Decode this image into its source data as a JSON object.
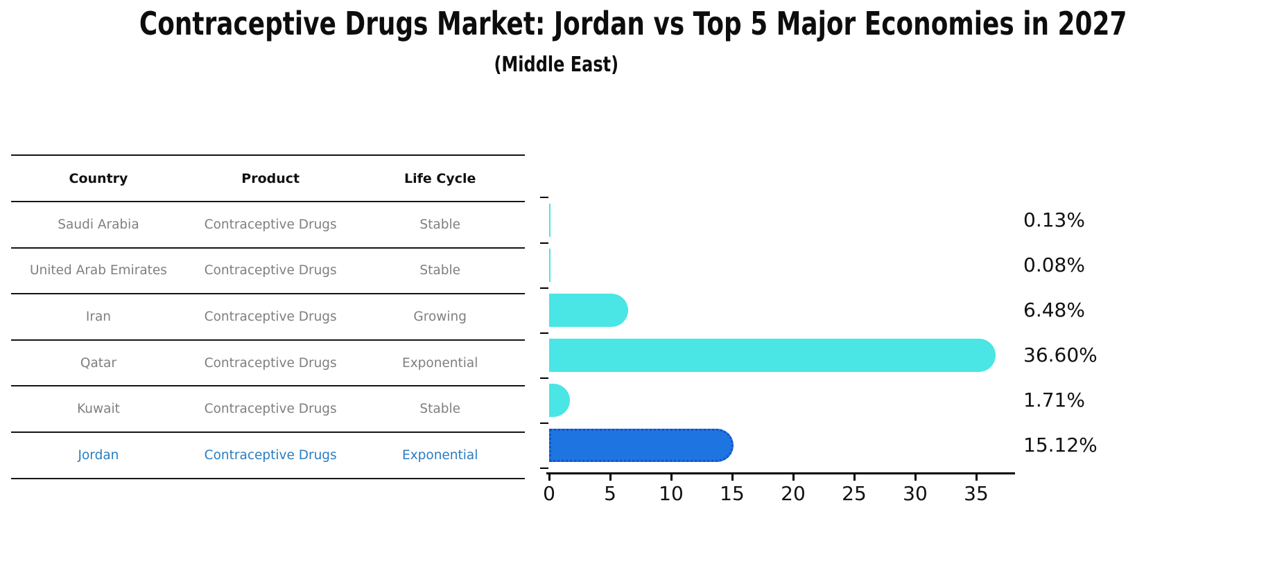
{
  "header": {
    "title": "Contraceptive Drugs Market: Jordan vs Top 5 Major Economies in 2027",
    "subtitle": "(Middle East)"
  },
  "table": {
    "headers": [
      "Country",
      "Product",
      "Life Cycle"
    ],
    "rows": [
      {
        "country": "Saudi Arabia",
        "product": "Contraceptive Drugs",
        "life_cycle": "Stable",
        "highlight": false
      },
      {
        "country": "United Arab Emirates",
        "product": "Contraceptive Drugs",
        "life_cycle": "Stable",
        "highlight": false
      },
      {
        "country": "Iran",
        "product": "Contraceptive Drugs",
        "life_cycle": "Growing",
        "highlight": false
      },
      {
        "country": "Qatar",
        "product": "Contraceptive Drugs",
        "life_cycle": "Exponential",
        "highlight": false
      },
      {
        "country": "Kuwait",
        "product": "Contraceptive Drugs",
        "life_cycle": "Stable",
        "highlight": false
      },
      {
        "country": "Jordan",
        "product": "Contraceptive Drugs",
        "life_cycle": "Exponential",
        "highlight": true
      }
    ]
  },
  "chart_data": {
    "type": "bar",
    "orientation": "horizontal",
    "title": "Contraceptive Drugs Market: Jordan vs Top 5 Major Economies in 2027",
    "subtitle": "(Middle East)",
    "categories": [
      "Saudi Arabia",
      "United Arab Emirates",
      "Iran",
      "Qatar",
      "Kuwait",
      "Jordan"
    ],
    "values": [
      0.13,
      0.08,
      6.48,
      36.6,
      1.71,
      15.12
    ],
    "value_labels": [
      "0.13%",
      "0.08%",
      "6.48%",
      "36.60%",
      "1.71%",
      "15.12%"
    ],
    "xlabel": "",
    "ylabel": "",
    "xlim": [
      0,
      38.2
    ],
    "xticks": [
      0,
      5,
      10,
      15,
      20,
      25,
      30,
      35
    ],
    "grid": false,
    "legend": false,
    "highlight_category": "Jordan",
    "colors": {
      "bar": "#4AE5E5",
      "highlight_bar": "#1E74E0",
      "highlight_border": "#1353C6",
      "axis": "#000000",
      "label_text": "#111111",
      "table_header_text": "#111111",
      "table_muted_text": "#7f7f7f",
      "table_highlight_text": "#2a7cc2"
    }
  }
}
